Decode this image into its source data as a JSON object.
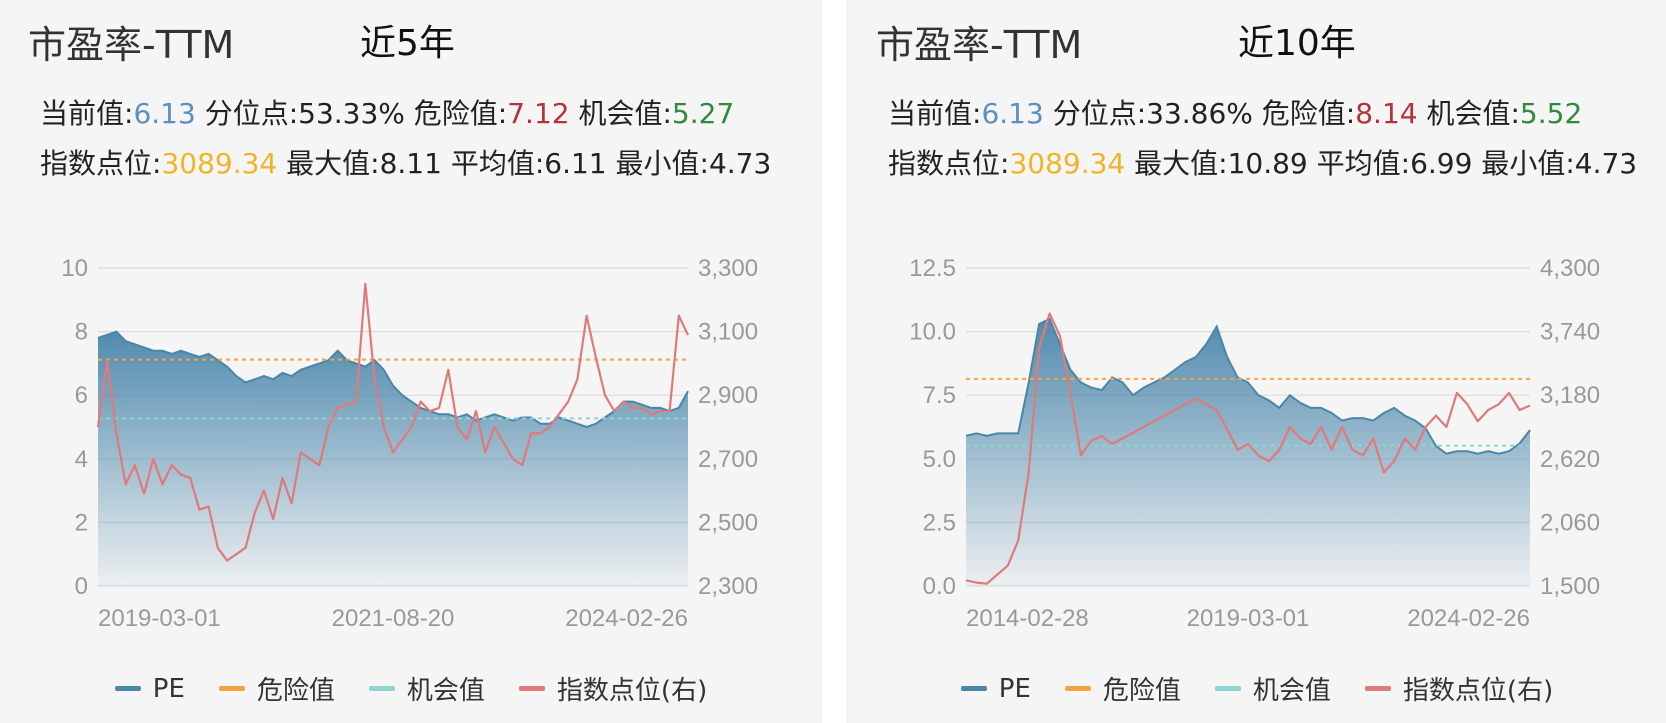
{
  "legend": {
    "pe": "PE",
    "danger": "危险值",
    "opportunity": "机会值",
    "index": "指数点位(右)"
  },
  "colors": {
    "pe": "#4a86a8",
    "danger": "#f5a442",
    "opportunity": "#8ed4d0",
    "index": "#e07a7a",
    "current_value": "#5b8fc4",
    "danger_value": "#b2333a",
    "opportunity_value": "#2e8b3d",
    "index_value": "#f0b429"
  },
  "labels": {
    "current": "当前值:",
    "percentile": "分位点:",
    "danger": "危险值:",
    "opportunity": "机会值:",
    "index": "指数点位:",
    "max": "最大值:",
    "avg": "平均值:",
    "min": "最小值:"
  },
  "panels": [
    {
      "title": "市盈率-TTM",
      "period": "近5年",
      "stats": {
        "current": "6.13",
        "percentile": "53.33%",
        "danger": "7.12",
        "opportunity": "5.27",
        "index": "3089.34",
        "max": "8.11",
        "avg": "6.11",
        "min": "4.73"
      }
    },
    {
      "title": "市盈率-TTM",
      "period": "近10年",
      "stats": {
        "current": "6.13",
        "percentile": "33.86%",
        "danger": "8.14",
        "opportunity": "5.52",
        "index": "3089.34",
        "max": "10.89",
        "avg": "6.99",
        "min": "4.73"
      }
    }
  ],
  "chart_data": [
    {
      "type": "area",
      "x_ticks": [
        "2019-03-01",
        "2021-08-20",
        "2024-02-26"
      ],
      "y_left": {
        "ticks": [
          "0",
          "2",
          "4",
          "6",
          "8",
          "10"
        ],
        "range": [
          0,
          10
        ]
      },
      "y_right": {
        "ticks": [
          "2,300",
          "2,500",
          "2,700",
          "2,900",
          "3,100",
          "3,300"
        ],
        "range": [
          2300,
          3300
        ]
      },
      "grid": true,
      "legend_position": "bottom",
      "reference_lines": {
        "danger": 7.12,
        "opportunity": 5.27
      },
      "series": [
        {
          "name": "PE",
          "axis": "left",
          "values": [
            7.8,
            7.9,
            8.0,
            7.7,
            7.6,
            7.5,
            7.4,
            7.4,
            7.3,
            7.4,
            7.3,
            7.2,
            7.3,
            7.1,
            6.9,
            6.6,
            6.4,
            6.5,
            6.6,
            6.5,
            6.7,
            6.6,
            6.8,
            6.9,
            7.0,
            7.1,
            7.4,
            7.1,
            7.0,
            6.9,
            7.1,
            6.8,
            6.3,
            6.0,
            5.8,
            5.6,
            5.5,
            5.4,
            5.4,
            5.3,
            5.4,
            5.2,
            5.3,
            5.4,
            5.3,
            5.2,
            5.3,
            5.3,
            5.1,
            5.1,
            5.3,
            5.2,
            5.1,
            5.0,
            5.1,
            5.3,
            5.5,
            5.8,
            5.8,
            5.7,
            5.6,
            5.6,
            5.5,
            5.6,
            6.13
          ]
        },
        {
          "name": "指数点位(右)",
          "axis": "right",
          "values": [
            2800,
            3010,
            2780,
            2620,
            2680,
            2590,
            2700,
            2620,
            2680,
            2650,
            2640,
            2540,
            2550,
            2420,
            2380,
            2400,
            2420,
            2530,
            2600,
            2510,
            2640,
            2560,
            2720,
            2700,
            2680,
            2800,
            2860,
            2870,
            2880,
            3250,
            2950,
            2800,
            2720,
            2760,
            2800,
            2880,
            2850,
            2860,
            2980,
            2800,
            2760,
            2850,
            2720,
            2800,
            2750,
            2700,
            2680,
            2780,
            2780,
            2800,
            2840,
            2880,
            2950,
            3150,
            3020,
            2900,
            2850,
            2880,
            2860,
            2860,
            2840,
            2850,
            2850,
            3150,
            3089.34
          ]
        }
      ]
    },
    {
      "type": "area",
      "x_ticks": [
        "2014-02-28",
        "2019-03-01",
        "2024-02-26"
      ],
      "y_left": {
        "ticks": [
          "0.0",
          "2.5",
          "5.0",
          "7.5",
          "10.0",
          "12.5"
        ],
        "range": [
          0,
          12.5
        ]
      },
      "y_right": {
        "ticks": [
          "1,500",
          "2,060",
          "2,620",
          "3,180",
          "3,740",
          "4,300"
        ],
        "range": [
          1500,
          4300
        ]
      },
      "grid": true,
      "legend_position": "bottom",
      "reference_lines": {
        "danger": 8.14,
        "opportunity": 5.52
      },
      "series": [
        {
          "name": "PE",
          "axis": "left",
          "values": [
            5.9,
            6.0,
            5.9,
            6.0,
            6.0,
            6.0,
            8.0,
            10.3,
            10.5,
            9.5,
            8.5,
            8.0,
            7.8,
            7.7,
            8.2,
            8.0,
            7.5,
            7.8,
            8.0,
            8.2,
            8.5,
            8.8,
            9.0,
            9.5,
            10.2,
            9.0,
            8.2,
            8.0,
            7.5,
            7.3,
            7.0,
            7.5,
            7.2,
            7.0,
            7.0,
            6.8,
            6.5,
            6.6,
            6.6,
            6.5,
            6.8,
            7.0,
            6.7,
            6.5,
            6.2,
            5.5,
            5.2,
            5.3,
            5.3,
            5.2,
            5.3,
            5.2,
            5.3,
            5.6,
            6.13
          ]
        },
        {
          "name": "指数点位(右)",
          "axis": "right",
          "values": [
            1550,
            1530,
            1520,
            1600,
            1680,
            1900,
            2500,
            3600,
            3900,
            3700,
            3200,
            2650,
            2780,
            2820,
            2750,
            2800,
            2850,
            2900,
            2950,
            3000,
            3050,
            3100,
            3150,
            3100,
            3050,
            2880,
            2700,
            2750,
            2650,
            2600,
            2700,
            2900,
            2800,
            2750,
            2900,
            2700,
            2900,
            2700,
            2650,
            2800,
            2500,
            2600,
            2800,
            2700,
            2900,
            3000,
            2900,
            3200,
            3100,
            2950,
            3050,
            3100,
            3200,
            3050,
            3089.34
          ]
        }
      ]
    }
  ]
}
